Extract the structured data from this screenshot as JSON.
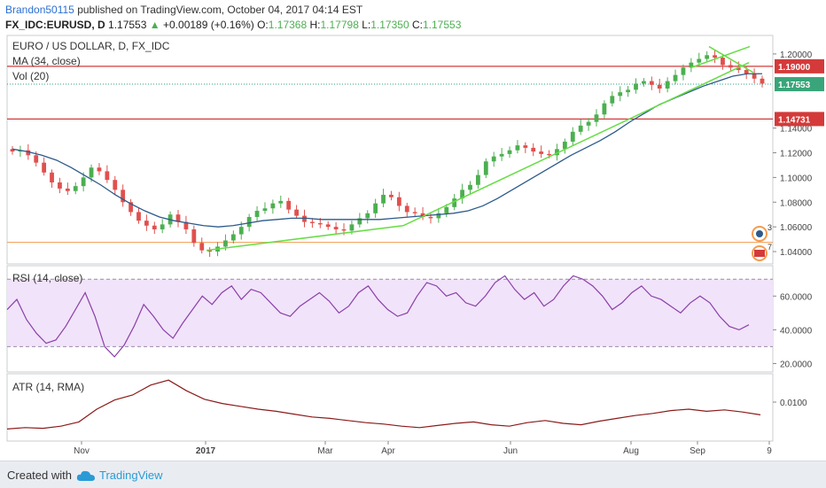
{
  "header": {
    "user": "Brandon50115",
    "published": "published on TradingView.com, October 04, 2017 04:14 EST",
    "symbol": "FX_IDC:EURUSD, D",
    "last": "1.17553",
    "change": "+0.00189 (+0.16%)",
    "open_label": "O:",
    "open": "1.17368",
    "high_label": "H:",
    "high": "1.17798",
    "low_label": "L:",
    "low": "1.17350",
    "close_label": "C:",
    "close": "1.17553"
  },
  "main_pane": {
    "title": "EURO / US DOLLAR, D, FX_IDC",
    "ma_label": "MA (34, close)",
    "vol_label": "Vol (20)",
    "price_ticks": [
      "1.20000",
      "1.14000",
      "1.12000",
      "1.10000",
      "1.08000",
      "1.06000",
      "1.04000"
    ],
    "price_tag_last": "1.17553",
    "hline_upper": "1.19000",
    "hline_lower": "1.14731",
    "event_counts": [
      "3",
      "7"
    ],
    "colors": {
      "up": "#4caf50",
      "down": "#e0504e",
      "ma": "#2c5a8a",
      "trend": "#66dd44",
      "hline": "#d43a3a",
      "support": "#f39c50"
    }
  },
  "rsi_pane": {
    "label": "RSI (14, close)",
    "ticks": [
      "60.0000",
      "40.0000",
      "20.0000"
    ],
    "band": [
      30,
      70
    ],
    "color": "#8a3fa8"
  },
  "atr_pane": {
    "label": "ATR (14, RMA)",
    "ticks": [
      "0.0100"
    ],
    "color": "#8b1a1a"
  },
  "time_axis": [
    "Nov",
    "2017",
    "Mar",
    "Apr",
    "Jun",
    "Aug",
    "Sep",
    "9"
  ],
  "footer": {
    "created": "Created with",
    "brand": "TradingView"
  },
  "chart_data": {
    "type": "candlestick",
    "title": "EURO / US DOLLAR, D, FX_IDC",
    "y_range": [
      1.03,
      1.215
    ],
    "close_approx": [
      1.121,
      1.122,
      1.118,
      1.112,
      1.104,
      1.096,
      1.091,
      1.089,
      1.093,
      1.1,
      1.108,
      1.105,
      1.098,
      1.09,
      1.08,
      1.072,
      1.065,
      1.061,
      1.058,
      1.062,
      1.07,
      1.064,
      1.058,
      1.047,
      1.041,
      1.04,
      1.044,
      1.049,
      1.054,
      1.06,
      1.068,
      1.073,
      1.075,
      1.079,
      1.081,
      1.074,
      1.069,
      1.064,
      1.063,
      1.062,
      1.06,
      1.058,
      1.057,
      1.062,
      1.067,
      1.071,
      1.079,
      1.086,
      1.084,
      1.077,
      1.072,
      1.071,
      1.068,
      1.067,
      1.071,
      1.076,
      1.083,
      1.09,
      1.094,
      1.102,
      1.113,
      1.117,
      1.119,
      1.122,
      1.126,
      1.124,
      1.121,
      1.119,
      1.118,
      1.123,
      1.129,
      1.137,
      1.142,
      1.145,
      1.151,
      1.16,
      1.166,
      1.169,
      1.171,
      1.176,
      1.178,
      1.175,
      1.172,
      1.178,
      1.183,
      1.189,
      1.193,
      1.196,
      1.199,
      1.197,
      1.191,
      1.189,
      1.187,
      1.184,
      1.18,
      1.176
    ],
    "ma34_approx": [
      1.123,
      1.121,
      1.118,
      1.114,
      1.108,
      1.101,
      1.094,
      1.086,
      1.079,
      1.073,
      1.068,
      1.065,
      1.063,
      1.061,
      1.06,
      1.061,
      1.063,
      1.065,
      1.066,
      1.067,
      1.067,
      1.066,
      1.066,
      1.066,
      1.066,
      1.066,
      1.067,
      1.068,
      1.069,
      1.07,
      1.071,
      1.073,
      1.077,
      1.083,
      1.09,
      1.097,
      1.104,
      1.111,
      1.118,
      1.124,
      1.13,
      1.137,
      1.145,
      1.152,
      1.159,
      1.164,
      1.169,
      1.174,
      1.178,
      1.182,
      1.184,
      1.184
    ],
    "rsi_approx": [
      52,
      58,
      46,
      38,
      32,
      34,
      42,
      52,
      62,
      48,
      30,
      24,
      31,
      42,
      55,
      48,
      40,
      35,
      44,
      52,
      60,
      55,
      62,
      66,
      58,
      64,
      62,
      56,
      50,
      48,
      54,
      58,
      62,
      57,
      50,
      54,
      62,
      66,
      58,
      52,
      48,
      50,
      60,
      68,
      66,
      60,
      62,
      56,
      54,
      60,
      68,
      72,
      64,
      58,
      62,
      54,
      58,
      66,
      72,
      70,
      66,
      60,
      52,
      56,
      62,
      66,
      60,
      58,
      54,
      50,
      56,
      60,
      56,
      48,
      42,
      40,
      43
    ],
    "rsi_band": [
      30,
      70
    ],
    "atr_approx": [
      0.0062,
      0.0064,
      0.0063,
      0.0066,
      0.0072,
      0.009,
      0.0103,
      0.011,
      0.0124,
      0.0131,
      0.0116,
      0.0104,
      0.0098,
      0.0094,
      0.009,
      0.0087,
      0.0083,
      0.0079,
      0.0077,
      0.0074,
      0.0071,
      0.0069,
      0.0066,
      0.0064,
      0.0067,
      0.007,
      0.0072,
      0.0068,
      0.0066,
      0.0071,
      0.0074,
      0.007,
      0.0068,
      0.0073,
      0.0077,
      0.0081,
      0.0084,
      0.0088,
      0.009,
      0.0087,
      0.0089,
      0.0086,
      0.0082
    ],
    "hlines": [
      1.19,
      1.14731,
      1.0475
    ]
  }
}
